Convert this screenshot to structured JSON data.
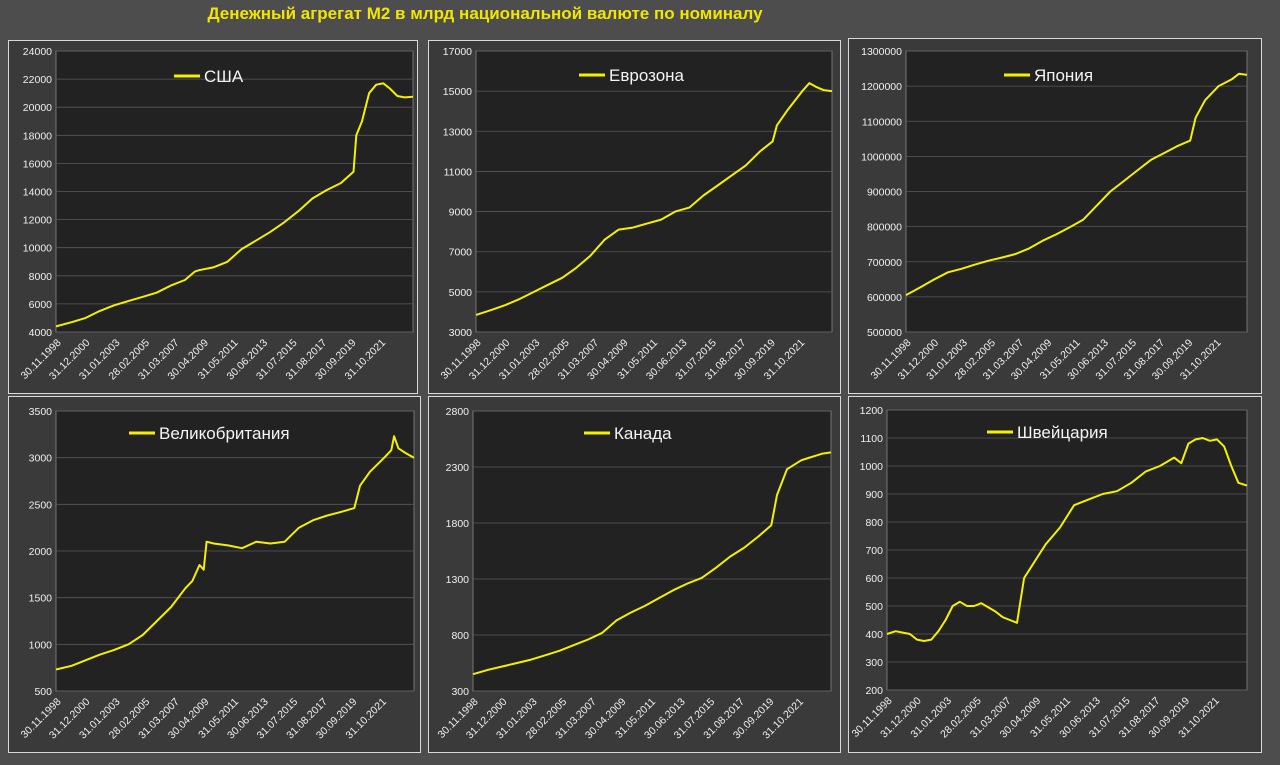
{
  "title": "Денежный агрегат М2 в млрд национальной валюте по номиналу",
  "colors": {
    "line": "#f5f000",
    "plot_bg": "#222222",
    "panel_bg": "#3a3a3a",
    "grid": "#5a5a5a"
  },
  "x_tick_labels": [
    "30.11.1998",
    "31.12.2000",
    "31.01.2003",
    "28.02.2005",
    "31.03.2007",
    "30.04.2009",
    "31.05.2011",
    "30.06.2013",
    "31.07.2015",
    "31.08.2017",
    "30.09.2019",
    "31.10.2021"
  ],
  "chart_data": [
    {
      "type": "line",
      "series": [
        {
          "name": "США",
          "x": [
            1998.9,
            2000,
            2001,
            2002,
            2003,
            2004,
            2005,
            2006,
            2007,
            2008,
            2008.7,
            2009,
            2010,
            2011,
            2012,
            2013,
            2014,
            2015,
            2016,
            2017,
            2018,
            2019,
            2019.9,
            2020.1,
            2020.5,
            2021,
            2021.5,
            2022,
            2022.5,
            2023,
            2023.5,
            2024.1
          ],
          "y": [
            4400,
            4700,
            5000,
            5500,
            5900,
            6200,
            6500,
            6800,
            7300,
            7700,
            8300,
            8400,
            8600,
            9000,
            9900,
            10500,
            11100,
            11800,
            12600,
            13500,
            14100,
            14600,
            15400,
            18000,
            19000,
            21000,
            21600,
            21700,
            21300,
            20800,
            20700,
            20750
          ]
        }
      ],
      "ylim": [
        4000,
        24000
      ],
      "yticks": [
        "4000",
        "6000",
        "8000",
        "10000",
        "12000",
        "14000",
        "16000",
        "18000",
        "20000",
        "22000",
        "24000"
      ]
    },
    {
      "type": "line",
      "series": [
        {
          "name": "Еврозона",
          "x": [
            1998.9,
            2000,
            2001,
            2002,
            2003,
            2004,
            2005,
            2006,
            2007,
            2008,
            2009,
            2010,
            2011,
            2012,
            2013,
            2014,
            2015,
            2016,
            2017,
            2018,
            2019,
            2019.9,
            2020.2,
            2021,
            2022,
            2022.5,
            2023,
            2023.5,
            2024.1
          ],
          "y": [
            3850,
            4100,
            4350,
            4650,
            5000,
            5350,
            5700,
            6200,
            6800,
            7600,
            8100,
            8200,
            8400,
            8600,
            9000,
            9200,
            9800,
            10300,
            10800,
            11300,
            12000,
            12500,
            13300,
            14100,
            15000,
            15400,
            15200,
            15050,
            15000
          ]
        }
      ],
      "ylim": [
        3000,
        17000
      ],
      "yticks": [
        "3000",
        "5000",
        "7000",
        "9000",
        "11000",
        "13000",
        "15000",
        "17000"
      ]
    },
    {
      "type": "line",
      "series": [
        {
          "name": "Япония",
          "x": [
            1998.9,
            2000,
            2001,
            2002,
            2003,
            2004,
            2005,
            2006,
            2007,
            2008,
            2009,
            2010,
            2011,
            2012,
            2013,
            2014,
            2015,
            2016,
            2017,
            2018,
            2019,
            2019.9,
            2020.3,
            2021,
            2022,
            2022.5,
            2023,
            2023.5,
            2024.1
          ],
          "y": [
            605000,
            628000,
            650000,
            670000,
            680000,
            692000,
            703000,
            712000,
            722000,
            738000,
            760000,
            778000,
            798000,
            820000,
            860000,
            900000,
            930000,
            960000,
            990000,
            1010000,
            1030000,
            1045000,
            1110000,
            1160000,
            1200000,
            1210000,
            1220000,
            1235000,
            1232000
          ]
        }
      ],
      "ylim": [
        500000,
        1300000
      ],
      "yticks": [
        "500000",
        "600000",
        "700000",
        "800000",
        "900000",
        "1000000",
        "1100000",
        "1200000",
        "1300000"
      ]
    },
    {
      "type": "line",
      "series": [
        {
          "name": "Великобритания",
          "x": [
            1998.9,
            2000,
            2001,
            2002,
            2003,
            2004,
            2005,
            2006,
            2007,
            2008,
            2008.5,
            2009,
            2009.3,
            2009.5,
            2010,
            2011,
            2012,
            2013,
            2014,
            2015,
            2016,
            2017,
            2018,
            2019,
            2019.9,
            2020.3,
            2021,
            2022,
            2022.5,
            2022.7,
            2023,
            2023.5,
            2024.1
          ],
          "y": [
            730,
            770,
            830,
            890,
            940,
            1000,
            1100,
            1250,
            1400,
            1600,
            1680,
            1850,
            1800,
            2100,
            2080,
            2060,
            2030,
            2100,
            2080,
            2100,
            2250,
            2330,
            2380,
            2420,
            2460,
            2700,
            2850,
            3000,
            3080,
            3230,
            3100,
            3050,
            3000
          ]
        }
      ],
      "ylim": [
        500,
        3500
      ],
      "yticks": [
        "500",
        "1000",
        "1500",
        "2000",
        "2500",
        "3000",
        "3500"
      ]
    },
    {
      "type": "line",
      "series": [
        {
          "name": "Канада",
          "x": [
            1998.9,
            2000,
            2001,
            2002,
            2003,
            2004,
            2005,
            2006,
            2007,
            2008,
            2009,
            2010,
            2011,
            2012,
            2013,
            2014,
            2015,
            2016,
            2017,
            2018,
            2019,
            2019.9,
            2020.3,
            2021,
            2022,
            2022.5,
            2023,
            2023.5,
            2024.1
          ],
          "y": [
            450,
            490,
            520,
            550,
            580,
            620,
            660,
            710,
            760,
            820,
            930,
            1000,
            1060,
            1130,
            1200,
            1260,
            1310,
            1400,
            1500,
            1580,
            1680,
            1780,
            2050,
            2280,
            2360,
            2380,
            2400,
            2420,
            2430
          ]
        }
      ],
      "ylim": [
        300,
        2800
      ],
      "yticks": [
        "300",
        "800",
        "1300",
        "1800",
        "2300",
        "2800"
      ]
    },
    {
      "type": "line",
      "series": [
        {
          "name": "Швейцария",
          "x": [
            1998.9,
            1999.5,
            2000.5,
            2001,
            2001.5,
            2002,
            2002.5,
            2003,
            2003.5,
            2004,
            2004.5,
            2005,
            2005.5,
            2006,
            2006.5,
            2007,
            2007.5,
            2008,
            2008.5,
            2009,
            2009.5,
            2010,
            2011,
            2012,
            2013,
            2014,
            2015,
            2016,
            2017,
            2018,
            2019,
            2019.5,
            2020,
            2020.5,
            2021,
            2021.5,
            2022,
            2022.5,
            2023,
            2023.5,
            2024.1
          ],
          "y": [
            400,
            410,
            400,
            380,
            375,
            380,
            410,
            450,
            500,
            515,
            500,
            500,
            510,
            495,
            480,
            460,
            450,
            440,
            600,
            640,
            680,
            720,
            780,
            860,
            880,
            900,
            910,
            940,
            980,
            1000,
            1030,
            1010,
            1080,
            1095,
            1100,
            1090,
            1095,
            1070,
            1000,
            940,
            930
          ]
        }
      ],
      "ylim": [
        200,
        1200
      ],
      "yticks": [
        "200",
        "300",
        "400",
        "500",
        "600",
        "700",
        "800",
        "900",
        "1000",
        "1100",
        "1200"
      ]
    }
  ]
}
